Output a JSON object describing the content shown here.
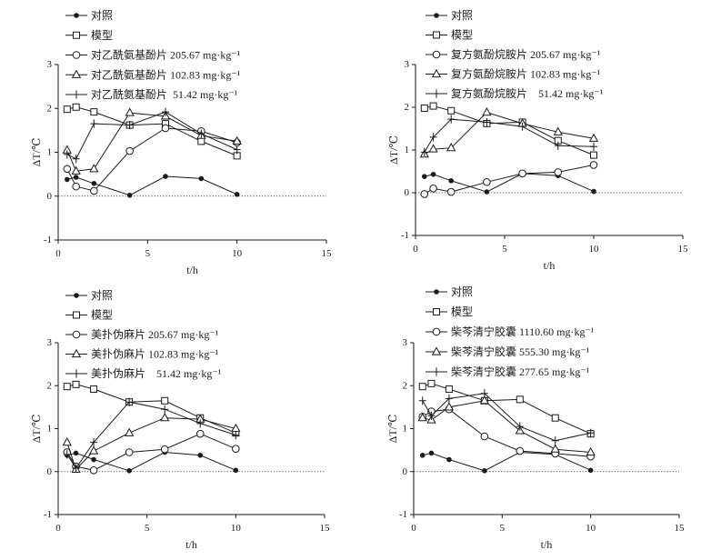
{
  "chart_data": [
    {
      "type": "line",
      "xlabel": "t/h",
      "ylabel": "ΔT/℃",
      "xlim": [
        0,
        15
      ],
      "ylim": [
        -1,
        3
      ],
      "xticks": [
        0,
        5,
        10,
        15
      ],
      "yticks": [
        -1,
        0,
        1,
        2,
        3
      ],
      "reference_line_y": 0,
      "grid": false,
      "legend_position": "top-left",
      "x": [
        0.5,
        1,
        2,
        4,
        6,
        8,
        10
      ],
      "series": [
        {
          "name": "对照",
          "marker": "filled-circle",
          "values": [
            0.38,
            0.43,
            0.29,
            0.02,
            0.45,
            0.4,
            0.04
          ]
        },
        {
          "name": "模型",
          "marker": "open-square",
          "values": [
            1.98,
            2.03,
            1.92,
            1.62,
            1.65,
            1.25,
            0.92
          ]
        },
        {
          "name": "对乙酰氨基酚片 205.67 mg·kg⁻¹",
          "marker": "open-circle",
          "values": [
            0.62,
            0.22,
            0.12,
            1.03,
            1.55,
            1.48,
            1.22
          ]
        },
        {
          "name": "对乙酰氨基酚片 102.83 mg·kg⁻¹",
          "marker": "open-triangle",
          "values": [
            1.05,
            0.57,
            0.62,
            1.9,
            1.82,
            1.38,
            1.25
          ]
        },
        {
          "name": "对乙酰氨基酚片  51.42 mg·kg⁻¹",
          "marker": "plus",
          "values": [
            0.95,
            0.85,
            1.65,
            1.62,
            1.92,
            1.42,
            1.06
          ]
        }
      ]
    },
    {
      "type": "line",
      "xlabel": "t/h",
      "ylabel": "ΔT/℃",
      "xlim": [
        0,
        15
      ],
      "ylim": [
        -1,
        3
      ],
      "xticks": [
        0,
        5,
        10,
        15
      ],
      "yticks": [
        -1,
        0,
        1,
        2,
        3
      ],
      "reference_line_y": 0,
      "grid": false,
      "legend_position": "top-left",
      "x": [
        0.5,
        1,
        2,
        4,
        6,
        8,
        10
      ],
      "series": [
        {
          "name": "对照",
          "marker": "filled-circle",
          "values": [
            0.38,
            0.43,
            0.28,
            0.02,
            0.45,
            0.4,
            0.03
          ]
        },
        {
          "name": "模型",
          "marker": "open-square",
          "values": [
            1.98,
            2.03,
            1.92,
            1.62,
            1.65,
            1.22,
            0.88
          ]
        },
        {
          "name": "复方氨酚烷胺片 205.67 mg·kg⁻¹",
          "marker": "open-circle",
          "values": [
            -0.03,
            0.1,
            0.02,
            0.25,
            0.45,
            0.48,
            0.65
          ]
        },
        {
          "name": "复方氨酚烷胺片 102.83 mg·kg⁻¹",
          "marker": "open-triangle",
          "values": [
            0.9,
            1.02,
            1.05,
            1.88,
            1.62,
            1.42,
            1.27
          ]
        },
        {
          "name": "复方氨酚烷胺片    51.42 mg·kg⁻¹",
          "marker": "plus",
          "values": [
            0.95,
            1.3,
            1.72,
            1.65,
            1.55,
            1.1,
            1.08
          ]
        }
      ]
    },
    {
      "type": "line",
      "xlabel": "t/h",
      "ylabel": "ΔT/℃",
      "xlim": [
        0,
        15
      ],
      "ylim": [
        -1,
        3
      ],
      "xticks": [
        0,
        5,
        10,
        15
      ],
      "yticks": [
        -1,
        0,
        1,
        2,
        3
      ],
      "reference_line_y": 0,
      "grid": false,
      "legend_position": "top-left",
      "x": [
        0.5,
        1,
        2,
        4,
        6,
        8,
        10
      ],
      "series": [
        {
          "name": "对照",
          "marker": "filled-circle",
          "values": [
            0.38,
            0.43,
            0.28,
            0.02,
            0.45,
            0.38,
            0.03
          ]
        },
        {
          "name": "模型",
          "marker": "open-square",
          "values": [
            1.98,
            2.03,
            1.92,
            1.62,
            1.65,
            1.25,
            0.9
          ]
        },
        {
          "name": "美扑伪麻片 205.67 mg·kg⁻¹",
          "marker": "open-circle",
          "values": [
            0.45,
            0.12,
            0.03,
            0.45,
            0.52,
            0.88,
            0.53
          ]
        },
        {
          "name": "美扑伪麻片 102.83 mg·kg⁻¹",
          "marker": "open-triangle",
          "values": [
            0.68,
            0.05,
            0.48,
            0.9,
            1.25,
            1.22,
            1.0
          ]
        },
        {
          "name": "美扑伪麻片    51.42 mg·kg⁻¹",
          "marker": "plus",
          "values": [
            0.4,
            0.08,
            0.68,
            1.62,
            1.45,
            1.12,
            0.85
          ]
        }
      ]
    },
    {
      "type": "line",
      "xlabel": "t/h",
      "ylabel": "ΔT/℃",
      "xlim": [
        0,
        15
      ],
      "ylim": [
        -1,
        3
      ],
      "xticks": [
        0,
        5,
        10,
        15
      ],
      "yticks": [
        -1,
        0,
        1,
        2,
        3
      ],
      "reference_line_y": 0,
      "grid": false,
      "legend_position": "top-left",
      "x": [
        0.5,
        1,
        2,
        4,
        6,
        8,
        10
      ],
      "series": [
        {
          "name": "对照",
          "marker": "filled-circle",
          "values": [
            0.38,
            0.43,
            0.28,
            0.02,
            0.45,
            0.4,
            0.03
          ]
        },
        {
          "name": "模型",
          "marker": "open-square",
          "values": [
            1.98,
            2.05,
            1.92,
            1.65,
            1.68,
            1.25,
            0.88
          ]
        },
        {
          "name": "柴芩清宁胶囊 1110.60 mg·kg⁻¹",
          "marker": "open-circle",
          "values": [
            1.28,
            1.4,
            1.45,
            0.82,
            0.48,
            0.42,
            0.35
          ]
        },
        {
          "name": "柴芩清宁胶囊 555.30 mg·kg⁻¹",
          "marker": "open-triangle",
          "values": [
            1.25,
            1.2,
            1.5,
            1.65,
            0.95,
            0.52,
            0.45
          ]
        },
        {
          "name": "柴芩清宁胶囊 277.65 mg·kg⁻¹",
          "marker": "plus",
          "values": [
            1.65,
            1.3,
            1.7,
            1.82,
            1.05,
            0.72,
            0.9
          ]
        }
      ]
    }
  ]
}
